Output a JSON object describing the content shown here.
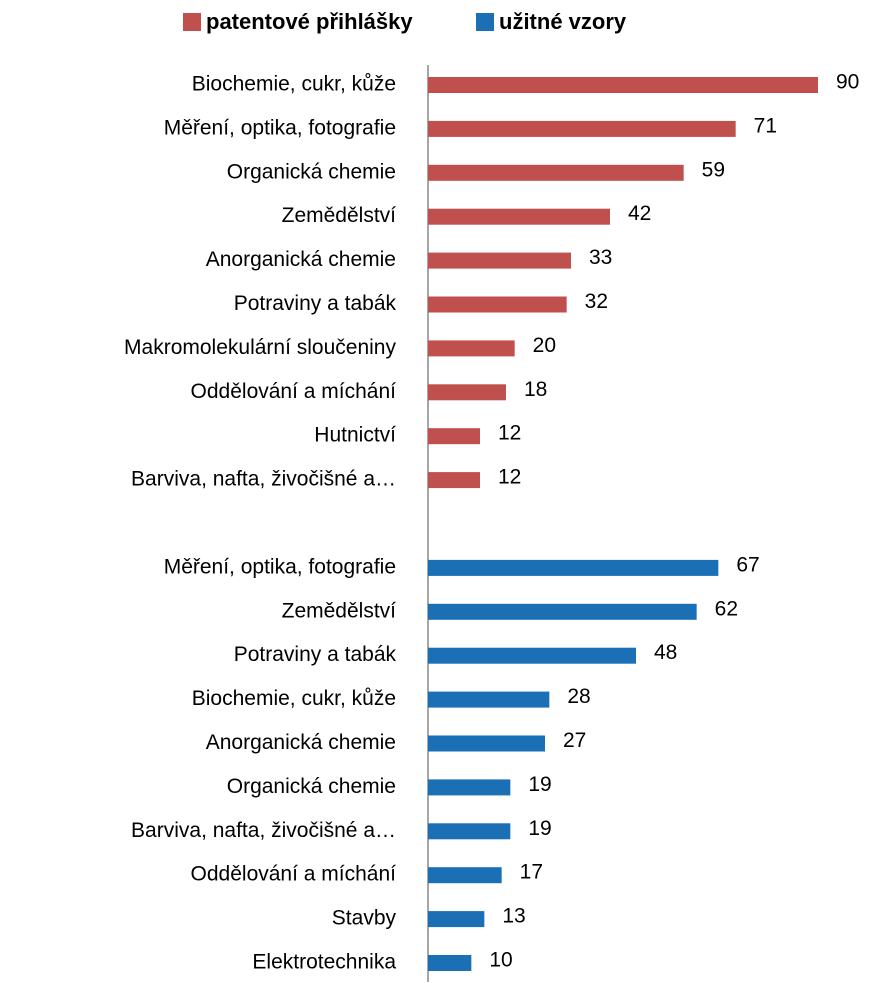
{
  "chart_data": {
    "type": "barh",
    "categories": [
      "Biochemie, cukr, kůže",
      "Měření, optika, fotografie",
      "Organická chemie",
      "Zemědělství",
      "Anorganická chemie",
      "Potraviny a tabák",
      "Makromolekulární sloučeniny",
      "Oddělování a míchání",
      "Hutnictví",
      "Barviva, nafta, živočišné a…",
      null,
      "Měření, optika, fotografie",
      "Zemědělství",
      "Potraviny a tabák",
      "Biochemie, cukr, kůže",
      "Anorganická chemie",
      "Organická chemie",
      "Barviva, nafta, živočišné a…",
      "Oddělování a míchání",
      "Stavby",
      "Elektrotechnika"
    ],
    "series": [
      {
        "name": "patentové přihlášky",
        "color": "#c0504d",
        "values": [
          90,
          71,
          59,
          42,
          33,
          32,
          20,
          18,
          12,
          12,
          null,
          null,
          null,
          null,
          null,
          null,
          null,
          null,
          null,
          null,
          null
        ]
      },
      {
        "name": "užitné vzory",
        "color": "#1a6fb5",
        "values": [
          null,
          null,
          null,
          null,
          null,
          null,
          null,
          null,
          null,
          null,
          null,
          67,
          62,
          48,
          28,
          27,
          19,
          19,
          17,
          13,
          10
        ]
      }
    ],
    "xlim": [
      0,
      90
    ],
    "legend": "top"
  }
}
